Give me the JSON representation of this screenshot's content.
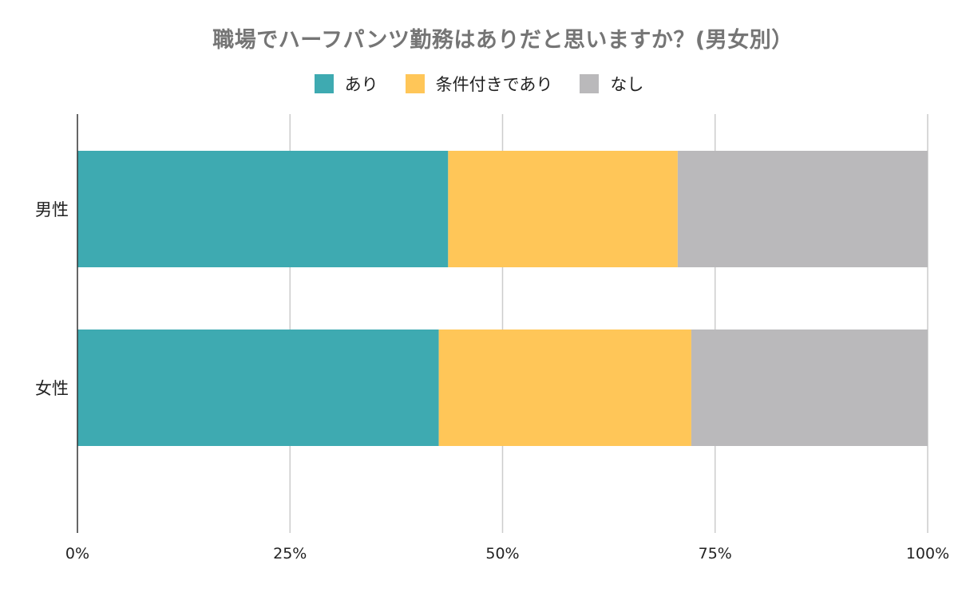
{
  "chart_data": {
    "type": "bar",
    "orientation": "horizontal",
    "stacked": true,
    "normalized": true,
    "title": "職場でハーフパンツ勤務はありだと思いますか？(男女別）",
    "categories": [
      "男性",
      "女性"
    ],
    "series": [
      {
        "name": "あり",
        "values": [
          43.6,
          42.5
        ],
        "color": "#3eaab1"
      },
      {
        "name": "条件付きであり",
        "values": [
          27.0,
          29.7
        ],
        "color": "#ffc658"
      },
      {
        "name": "なし",
        "values": [
          29.4,
          27.8
        ],
        "color": "#bab9bb"
      }
    ],
    "xlim": [
      0,
      100
    ],
    "x_ticks": [
      "0%",
      "25%",
      "50%",
      "75%",
      "100%"
    ],
    "x_tick_values": [
      0,
      25,
      50,
      75,
      100
    ],
    "grid": true,
    "legend_position": "top"
  }
}
